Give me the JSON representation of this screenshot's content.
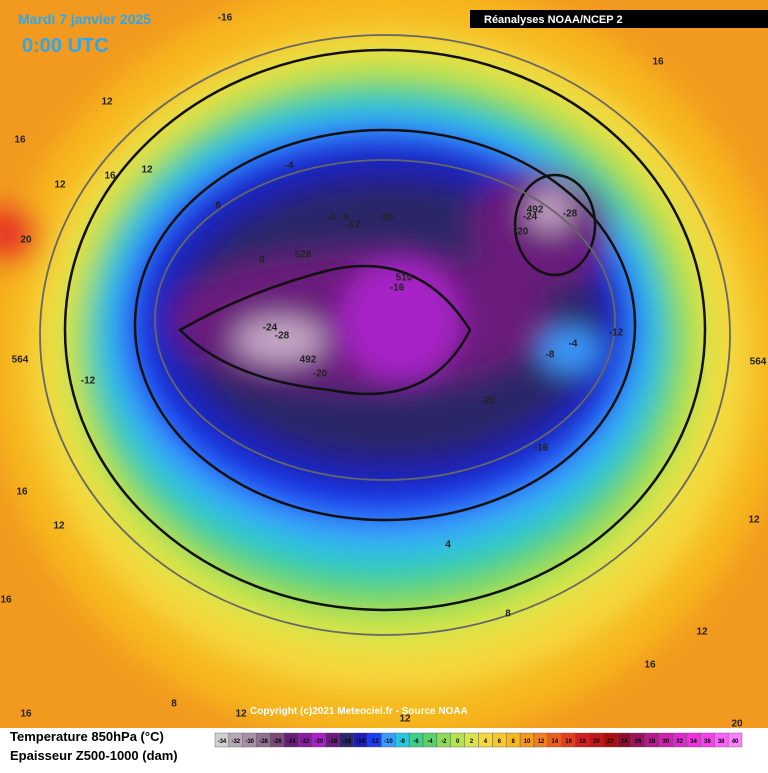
{
  "header": {
    "date": "Mardi 7 janvier 2025",
    "time": "0:00 UTC",
    "source": "Réanalyses NOAA/NCEP 2"
  },
  "copyright": "Copyright (c)2021 Meteociel.fr - Source NOAA",
  "legend": {
    "line1": "Temperature 850hPa (°C)",
    "line2": "Epaisseur Z500-1000 (dam)",
    "scale": [
      "-34",
      "-32",
      "-30",
      "-28",
      "-26",
      "-24",
      "-22",
      "-20",
      "-18",
      "-16",
      "-14",
      "-12",
      "-10",
      "-8",
      "-6",
      "-4",
      "-2",
      "0",
      "2",
      "4",
      "6",
      "8",
      "10",
      "12",
      "14",
      "16",
      "18",
      "20",
      "22",
      "24",
      "26",
      "28",
      "30",
      "32",
      "34",
      "36",
      "38",
      "40"
    ]
  },
  "map_labels": [
    "-16",
    "16",
    "12",
    "16",
    "12",
    "16",
    "12",
    "8",
    "-4",
    "-4",
    "-8",
    "-12",
    "-20",
    "-24",
    "-28",
    "492",
    "-20",
    "510",
    "-16",
    "528",
    "0",
    "20",
    "-24",
    "-28",
    "492",
    "-20",
    "-12",
    "-12",
    "-4",
    "-8",
    "-20",
    "-16",
    "564",
    "564",
    "16",
    "12",
    "12",
    "4",
    "8",
    "12",
    "16",
    "8",
    "16",
    "12",
    "12",
    "20",
    "16"
  ]
}
